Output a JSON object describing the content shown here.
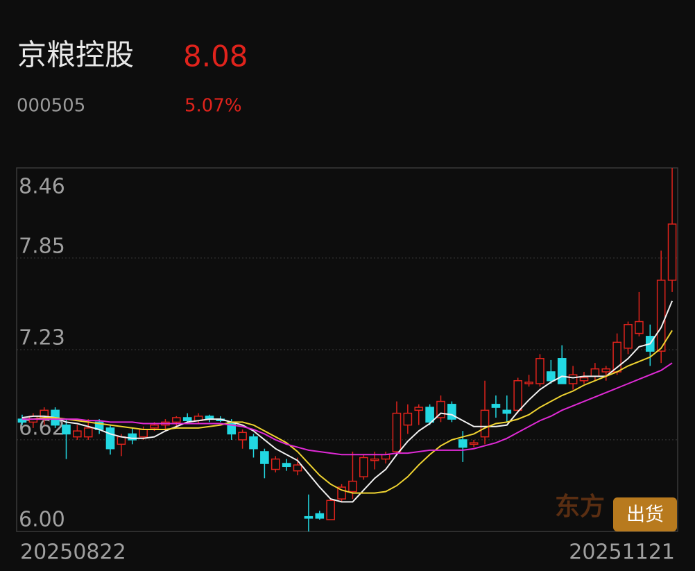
{
  "header": {
    "name": "京粮控股",
    "price": "8.08",
    "code": "000505",
    "change": "5.07%"
  },
  "watermark": "东方",
  "button": "出货",
  "chart_data": {
    "type": "candlestick",
    "categories": [
      "20250822",
      null,
      null,
      null,
      null,
      null,
      null,
      null,
      null,
      null,
      null,
      null,
      null,
      null,
      null,
      null,
      null,
      null,
      null,
      null,
      null,
      null,
      null,
      null,
      null,
      null,
      null,
      null,
      null,
      null,
      null,
      null,
      null,
      null,
      null,
      null,
      null,
      null,
      null,
      null,
      null,
      null,
      null,
      null,
      null,
      null,
      null,
      null,
      null,
      null,
      null,
      null,
      null,
      null,
      null,
      null,
      null,
      null,
      null,
      "20251121"
    ],
    "open": [
      6.76,
      6.74,
      6.77,
      6.82,
      6.72,
      6.64,
      6.64,
      6.74,
      6.7,
      6.59,
      6.66,
      6.64,
      6.7,
      6.72,
      6.74,
      6.77,
      6.75,
      6.78,
      6.76,
      6.74,
      6.62,
      6.64,
      6.54,
      6.42,
      6.46,
      6.41,
      6.1,
      6.12,
      6.08,
      6.22,
      6.27,
      6.37,
      6.48,
      6.49,
      6.54,
      6.72,
      6.82,
      6.84,
      6.77,
      6.86,
      6.62,
      6.59,
      6.64,
      6.86,
      6.82,
      6.82,
      7.0,
      7.0,
      7.08,
      7.17,
      7.0,
      7.02,
      7.05,
      7.08,
      7.08,
      7.24,
      7.34,
      7.32,
      7.22,
      7.7
    ],
    "high": [
      6.79,
      6.8,
      6.84,
      6.84,
      6.76,
      6.72,
      6.76,
      6.76,
      6.72,
      6.66,
      6.7,
      6.71,
      6.74,
      6.76,
      6.78,
      6.8,
      6.8,
      6.79,
      6.78,
      6.76,
      6.69,
      6.66,
      6.56,
      6.51,
      6.49,
      6.5,
      6.25,
      6.14,
      6.22,
      6.32,
      6.54,
      6.52,
      6.54,
      6.54,
      6.88,
      6.86,
      6.86,
      6.86,
      6.92,
      6.88,
      6.68,
      6.62,
      7.02,
      6.92,
      6.92,
      7.04,
      7.06,
      7.2,
      7.16,
      7.26,
      7.12,
      7.08,
      7.14,
      7.12,
      7.34,
      7.42,
      7.62,
      7.4,
      7.9,
      8.46
    ],
    "low": [
      6.72,
      6.7,
      6.72,
      6.7,
      6.49,
      6.62,
      6.62,
      6.66,
      6.52,
      6.51,
      6.59,
      6.62,
      6.68,
      6.68,
      6.7,
      6.74,
      6.73,
      6.74,
      6.74,
      6.62,
      6.56,
      6.5,
      6.36,
      6.4,
      6.41,
      6.38,
      6.0,
      6.08,
      6.08,
      6.2,
      6.22,
      6.35,
      6.42,
      6.46,
      6.52,
      6.66,
      6.72,
      6.72,
      6.74,
      6.74,
      6.47,
      6.57,
      6.59,
      6.77,
      6.74,
      6.8,
      6.98,
      6.98,
      7.0,
      7.0,
      6.96,
      7.0,
      7.02,
      7.02,
      7.06,
      7.2,
      7.32,
      7.12,
      7.14,
      7.62
    ],
    "close": [
      6.74,
      6.78,
      6.82,
      6.72,
      6.66,
      6.68,
      6.7,
      6.69,
      6.56,
      6.64,
      6.62,
      6.69,
      6.72,
      6.74,
      6.77,
      6.75,
      6.78,
      6.76,
      6.75,
      6.66,
      6.67,
      6.56,
      6.46,
      6.49,
      6.44,
      6.45,
      6.09,
      6.09,
      6.21,
      6.3,
      6.34,
      6.5,
      6.49,
      6.52,
      6.8,
      6.8,
      6.84,
      6.74,
      6.88,
      6.76,
      6.57,
      6.6,
      6.82,
      6.84,
      6.8,
      7.02,
      7.01,
      7.17,
      7.02,
      7.0,
      7.06,
      7.04,
      7.1,
      7.1,
      7.28,
      7.4,
      7.42,
      7.22,
      7.7,
      8.08
    ],
    "up_color": "#e0231c",
    "down_color": "#22d8e2",
    "ma_lines": [
      {
        "color": "#f2f2f2",
        "values": [
          6.77,
          6.78,
          6.78,
          6.77,
          6.74,
          6.73,
          6.71,
          6.69,
          6.66,
          6.64,
          6.63,
          6.63,
          6.64,
          6.68,
          6.71,
          6.74,
          6.75,
          6.76,
          6.76,
          6.74,
          6.72,
          6.68,
          6.62,
          6.56,
          6.52,
          6.48,
          6.39,
          6.3,
          6.22,
          6.2,
          6.2,
          6.28,
          6.36,
          6.42,
          6.52,
          6.61,
          6.68,
          6.73,
          6.8,
          6.79,
          6.75,
          6.71,
          6.71,
          6.71,
          6.72,
          6.81,
          6.89,
          6.96,
          7.01,
          7.05,
          7.04,
          7.05,
          7.05,
          7.05,
          7.11,
          7.17,
          7.25,
          7.27,
          7.38,
          7.56
        ]
      },
      {
        "color": "#f0d431",
        "values": [
          6.76,
          6.76,
          6.77,
          6.77,
          6.76,
          6.75,
          6.74,
          6.73,
          6.72,
          6.71,
          6.7,
          6.69,
          6.69,
          6.69,
          6.7,
          6.7,
          6.7,
          6.71,
          6.72,
          6.74,
          6.74,
          6.72,
          6.68,
          6.64,
          6.6,
          6.54,
          6.46,
          6.38,
          6.32,
          6.28,
          6.26,
          6.26,
          6.26,
          6.27,
          6.31,
          6.37,
          6.45,
          6.52,
          6.58,
          6.62,
          6.64,
          6.66,
          6.7,
          6.73,
          6.74,
          6.76,
          6.79,
          6.84,
          6.88,
          6.92,
          6.95,
          6.99,
          7.02,
          7.05,
          7.08,
          7.12,
          7.15,
          7.18,
          7.24,
          7.36
        ]
      },
      {
        "color": "#e02ad6",
        "values": [
          6.76,
          6.76,
          6.76,
          6.76,
          6.76,
          6.76,
          6.75,
          6.75,
          6.74,
          6.74,
          6.74,
          6.73,
          6.73,
          6.73,
          6.73,
          6.73,
          6.73,
          6.73,
          6.73,
          6.72,
          6.71,
          6.69,
          6.66,
          6.62,
          6.59,
          6.57,
          6.55,
          6.54,
          6.53,
          6.52,
          6.52,
          6.52,
          6.52,
          6.52,
          6.53,
          6.53,
          6.54,
          6.55,
          6.55,
          6.55,
          6.55,
          6.56,
          6.58,
          6.6,
          6.63,
          6.67,
          6.71,
          6.75,
          6.78,
          6.82,
          6.85,
          6.88,
          6.91,
          6.94,
          6.97,
          7.0,
          7.03,
          7.06,
          7.09,
          7.14
        ]
      }
    ],
    "ylim": [
      6.0,
      8.46
    ],
    "yticks": [
      8.46,
      7.85,
      7.23,
      6.62,
      {
        "value": 6.0,
        "label": "6.00"
      }
    ],
    "grid": true
  }
}
